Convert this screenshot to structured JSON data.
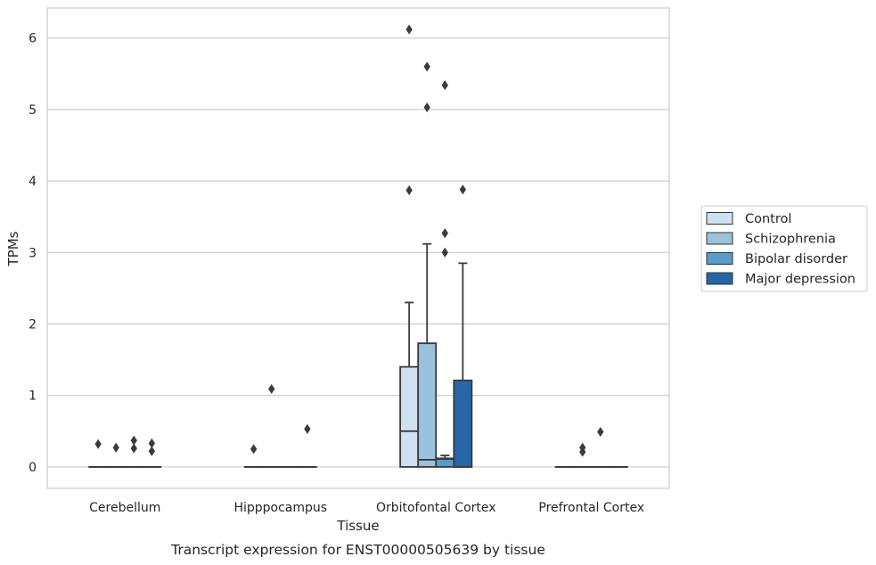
{
  "chart_data": {
    "type": "box",
    "xlabel": "Tissue",
    "ylabel": "TPMs",
    "caption": "Transcript expression for ENST00000505639 by tissue",
    "ylim": [
      -0.3,
      6.42
    ],
    "yticks": [
      0,
      1,
      2,
      3,
      4,
      5,
      6
    ],
    "grid": "horizontal",
    "legend_position": "right",
    "categories": [
      "Cerebellum",
      "Hipppocampus",
      "Orbitofontal Cortex",
      "Prefrontal Cortex"
    ],
    "series": [
      {
        "name": "Control",
        "color": "#cfe0f1",
        "boxes": [
          {
            "q1": 0,
            "median": 0,
            "q3": 0,
            "whislo": 0,
            "whishi": 0,
            "fliers": [
              0.32
            ]
          },
          {
            "q1": 0,
            "median": 0,
            "q3": 0,
            "whislo": 0,
            "whishi": 0,
            "fliers": [
              0.25
            ]
          },
          {
            "q1": 0,
            "median": 0.5,
            "q3": 1.4,
            "whislo": 0,
            "whishi": 2.3,
            "fliers": [
              3.87,
              6.12
            ]
          },
          {
            "q1": 0,
            "median": 0,
            "q3": 0,
            "whislo": 0,
            "whishi": 0,
            "fliers": []
          }
        ]
      },
      {
        "name": "Schizophrenia",
        "color": "#9ac2dc",
        "boxes": [
          {
            "q1": 0,
            "median": 0,
            "q3": 0,
            "whislo": 0,
            "whishi": 0,
            "fliers": [
              0.27
            ]
          },
          {
            "q1": 0,
            "median": 0,
            "q3": 0,
            "whislo": 0,
            "whishi": 0,
            "fliers": [
              1.09
            ]
          },
          {
            "q1": 0,
            "median": 0.1,
            "q3": 1.73,
            "whislo": 0,
            "whishi": 3.12,
            "fliers": [
              5.03,
              5.6
            ]
          },
          {
            "q1": 0,
            "median": 0,
            "q3": 0,
            "whislo": 0,
            "whishi": 0,
            "fliers": [
              0.21,
              0.27
            ]
          }
        ]
      },
      {
        "name": "Bipolar disorder",
        "color": "#5a9bc9",
        "boxes": [
          {
            "q1": 0,
            "median": 0,
            "q3": 0,
            "whislo": 0,
            "whishi": 0,
            "fliers": [
              0.26,
              0.37
            ]
          },
          {
            "q1": 0,
            "median": 0,
            "q3": 0,
            "whislo": 0,
            "whishi": 0,
            "fliers": []
          },
          {
            "q1": 0,
            "median": 0.11,
            "q3": 0.12,
            "whislo": 0,
            "whishi": 0.16,
            "fliers": [
              3.0,
              3.27,
              5.34
            ]
          },
          {
            "q1": 0,
            "median": 0,
            "q3": 0,
            "whislo": 0,
            "whishi": 0,
            "fliers": [
              0.49
            ]
          }
        ]
      },
      {
        "name": "Major depression",
        "color": "#2666a6",
        "boxes": [
          {
            "q1": 0,
            "median": 0,
            "q3": 0,
            "whislo": 0,
            "whishi": 0,
            "fliers": [
              0.22,
              0.33
            ]
          },
          {
            "q1": 0,
            "median": 0,
            "q3": 0,
            "whislo": 0,
            "whishi": 0,
            "fliers": [
              0.53
            ]
          },
          {
            "q1": 0,
            "median": 0,
            "q3": 1.21,
            "whislo": 0,
            "whishi": 2.85,
            "fliers": [
              3.88
            ]
          },
          {
            "q1": 0,
            "median": 0,
            "q3": 0,
            "whislo": 0,
            "whishi": 0,
            "fliers": []
          }
        ]
      }
    ]
  }
}
